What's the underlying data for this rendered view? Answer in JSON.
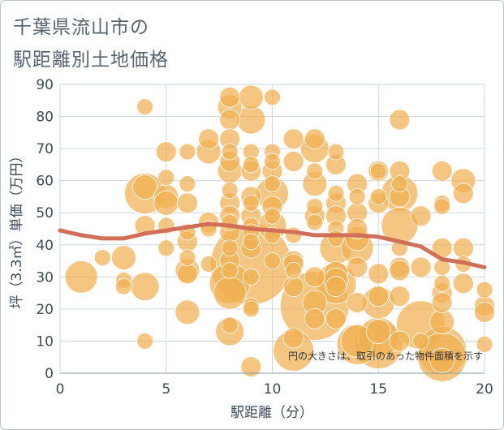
{
  "title_line1": "千葉県流山市の",
  "title_line2": "駅距離別土地価格",
  "chart_data": {
    "type": "scatter",
    "xlabel": "駅距離（分）",
    "ylabel": "坪（3.3㎡）単価（万円）",
    "xlim": [
      0,
      20
    ],
    "ylim": [
      0,
      90
    ],
    "x_ticks": [
      "0",
      "5",
      "10",
      "15",
      "20"
    ],
    "y_ticks": [
      "0",
      "10",
      "20",
      "30",
      "40",
      "50",
      "60",
      "70",
      "80",
      "90"
    ],
    "grid": true,
    "note": "円の大きさは、取引のあった物件面積を示す",
    "bubble_color": "#f0b050",
    "trend_color": "#d0705a",
    "points": [
      {
        "x": 1,
        "y": 30,
        "s": 3
      },
      {
        "x": 2,
        "y": 36,
        "s": 1
      },
      {
        "x": 3,
        "y": 36,
        "s": 2
      },
      {
        "x": 3,
        "y": 29,
        "s": 1
      },
      {
        "x": 3,
        "y": 27,
        "s": 1
      },
      {
        "x": 4,
        "y": 83,
        "s": 1
      },
      {
        "x": 4,
        "y": 58,
        "s": 2
      },
      {
        "x": 4,
        "y": 56,
        "s": 4
      },
      {
        "x": 4,
        "y": 46,
        "s": 1.5
      },
      {
        "x": 4,
        "y": 27,
        "s": 2.5
      },
      {
        "x": 4,
        "y": 10,
        "s": 1
      },
      {
        "x": 5,
        "y": 69,
        "s": 1.5
      },
      {
        "x": 5,
        "y": 61,
        "s": 1
      },
      {
        "x": 5,
        "y": 55,
        "s": 2
      },
      {
        "x": 5,
        "y": 53,
        "s": 2
      },
      {
        "x": 5,
        "y": 46,
        "s": 1
      },
      {
        "x": 5,
        "y": 39,
        "s": 1
      },
      {
        "x": 6,
        "y": 69,
        "s": 1
      },
      {
        "x": 6,
        "y": 59,
        "s": 1
      },
      {
        "x": 6,
        "y": 53,
        "s": 1.5
      },
      {
        "x": 6,
        "y": 44,
        "s": 1
      },
      {
        "x": 6,
        "y": 41,
        "s": 1.5
      },
      {
        "x": 6,
        "y": 36,
        "s": 1
      },
      {
        "x": 6,
        "y": 32,
        "s": 2
      },
      {
        "x": 6,
        "y": 31,
        "s": 1.5
      },
      {
        "x": 6,
        "y": 19,
        "s": 2
      },
      {
        "x": 7,
        "y": 73,
        "s": 1.5
      },
      {
        "x": 7,
        "y": 69,
        "s": 2
      },
      {
        "x": 7,
        "y": 47,
        "s": 1.5
      },
      {
        "x": 7,
        "y": 45,
        "s": 1
      },
      {
        "x": 7,
        "y": 34,
        "s": 1
      },
      {
        "x": 8,
        "y": 86,
        "s": 1.5
      },
      {
        "x": 8,
        "y": 83,
        "s": 2
      },
      {
        "x": 8,
        "y": 79,
        "s": 1.5
      },
      {
        "x": 8,
        "y": 73,
        "s": 1.5
      },
      {
        "x": 8,
        "y": 69,
        "s": 1
      },
      {
        "x": 8,
        "y": 66,
        "s": 1.5
      },
      {
        "x": 8,
        "y": 63,
        "s": 2
      },
      {
        "x": 8,
        "y": 57,
        "s": 1
      },
      {
        "x": 8,
        "y": 53,
        "s": 1.5
      },
      {
        "x": 8,
        "y": 49,
        "s": 1.5
      },
      {
        "x": 8,
        "y": 47,
        "s": 1
      },
      {
        "x": 8,
        "y": 44,
        "s": 1.5
      },
      {
        "x": 8,
        "y": 39,
        "s": 1
      },
      {
        "x": 8,
        "y": 35,
        "s": 1.5
      },
      {
        "x": 8,
        "y": 32,
        "s": 1
      },
      {
        "x": 8,
        "y": 28,
        "s": 4
      },
      {
        "x": 8,
        "y": 25,
        "s": 3
      },
      {
        "x": 8,
        "y": 15,
        "s": 1
      },
      {
        "x": 8,
        "y": 13,
        "s": 2.5
      },
      {
        "x": 9,
        "y": 86,
        "s": 2
      },
      {
        "x": 9,
        "y": 79,
        "s": 2.5
      },
      {
        "x": 9,
        "y": 69,
        "s": 1
      },
      {
        "x": 9,
        "y": 65,
        "s": 1
      },
      {
        "x": 9,
        "y": 63,
        "s": 1.5
      },
      {
        "x": 9,
        "y": 55,
        "s": 1.5
      },
      {
        "x": 9,
        "y": 53,
        "s": 1
      },
      {
        "x": 9,
        "y": 49,
        "s": 1.5
      },
      {
        "x": 9,
        "y": 46,
        "s": 1
      },
      {
        "x": 9,
        "y": 44,
        "s": 1
      },
      {
        "x": 9,
        "y": 41,
        "s": 1
      },
      {
        "x": 9,
        "y": 39,
        "s": 1.5
      },
      {
        "x": 9,
        "y": 34,
        "s": 9
      },
      {
        "x": 9,
        "y": 30,
        "s": 1
      },
      {
        "x": 9,
        "y": 21,
        "s": 1
      },
      {
        "x": 9,
        "y": 20,
        "s": 1
      },
      {
        "x": 9,
        "y": 2,
        "s": 1.5
      },
      {
        "x": 10,
        "y": 86,
        "s": 1
      },
      {
        "x": 10,
        "y": 69,
        "s": 1
      },
      {
        "x": 10,
        "y": 66,
        "s": 1
      },
      {
        "x": 10,
        "y": 63,
        "s": 1.5
      },
      {
        "x": 10,
        "y": 59,
        "s": 1
      },
      {
        "x": 10,
        "y": 56,
        "s": 3
      },
      {
        "x": 10,
        "y": 52,
        "s": 1.5
      },
      {
        "x": 10,
        "y": 49,
        "s": 1
      },
      {
        "x": 10,
        "y": 46,
        "s": 2.5
      },
      {
        "x": 10,
        "y": 43,
        "s": 1
      },
      {
        "x": 10,
        "y": 35,
        "s": 1
      },
      {
        "x": 11,
        "y": 73,
        "s": 1.5
      },
      {
        "x": 11,
        "y": 66,
        "s": 1.5
      },
      {
        "x": 11,
        "y": 43,
        "s": 1
      },
      {
        "x": 11,
        "y": 35,
        "s": 1.5
      },
      {
        "x": 11,
        "y": 34,
        "s": 1.5
      },
      {
        "x": 11,
        "y": 32,
        "s": 1
      },
      {
        "x": 11,
        "y": 27,
        "s": 1.5
      },
      {
        "x": 11,
        "y": 11,
        "s": 1.5
      },
      {
        "x": 11,
        "y": 7,
        "s": 4
      },
      {
        "x": 12,
        "y": 73,
        "s": 1.5
      },
      {
        "x": 12,
        "y": 70,
        "s": 2.5
      },
      {
        "x": 12,
        "y": 63,
        "s": 1
      },
      {
        "x": 12,
        "y": 59,
        "s": 2
      },
      {
        "x": 12,
        "y": 52,
        "s": 1
      },
      {
        "x": 12,
        "y": 49,
        "s": 1.5
      },
      {
        "x": 12,
        "y": 47,
        "s": 1
      },
      {
        "x": 12,
        "y": 30,
        "s": 1.5
      },
      {
        "x": 12,
        "y": 22,
        "s": 2
      },
      {
        "x": 12,
        "y": 21,
        "s": 7.5
      },
      {
        "x": 12,
        "y": 17,
        "s": 1.5
      },
      {
        "x": 13,
        "y": 69,
        "s": 1
      },
      {
        "x": 13,
        "y": 65,
        "s": 1.5
      },
      {
        "x": 13,
        "y": 56,
        "s": 1
      },
      {
        "x": 13,
        "y": 53,
        "s": 1.5
      },
      {
        "x": 13,
        "y": 49,
        "s": 1.5
      },
      {
        "x": 13,
        "y": 45,
        "s": 1
      },
      {
        "x": 13,
        "y": 42,
        "s": 1
      },
      {
        "x": 13,
        "y": 39,
        "s": 3
      },
      {
        "x": 13,
        "y": 31,
        "s": 2
      },
      {
        "x": 13,
        "y": 29,
        "s": 2
      },
      {
        "x": 13,
        "y": 28,
        "s": 4
      },
      {
        "x": 13,
        "y": 27,
        "s": 1.5
      },
      {
        "x": 13,
        "y": 17,
        "s": 1.5
      },
      {
        "x": 14,
        "y": 59,
        "s": 1.5
      },
      {
        "x": 14,
        "y": 55,
        "s": 1
      },
      {
        "x": 14,
        "y": 50,
        "s": 1.5
      },
      {
        "x": 14,
        "y": 45,
        "s": 1.5
      },
      {
        "x": 14,
        "y": 42,
        "s": 2
      },
      {
        "x": 14,
        "y": 39,
        "s": 3
      },
      {
        "x": 14,
        "y": 33,
        "s": 1.5
      },
      {
        "x": 14,
        "y": 22,
        "s": 1.5
      },
      {
        "x": 14,
        "y": 10,
        "s": 3
      },
      {
        "x": 14,
        "y": 9,
        "s": 4
      },
      {
        "x": 15,
        "y": 63,
        "s": 1
      },
      {
        "x": 15,
        "y": 63,
        "s": 1.5
      },
      {
        "x": 15,
        "y": 55,
        "s": 1
      },
      {
        "x": 15,
        "y": 53,
        "s": 1.5
      },
      {
        "x": 15,
        "y": 31,
        "s": 1.5
      },
      {
        "x": 15,
        "y": 24,
        "s": 1.5
      },
      {
        "x": 15,
        "y": 22,
        "s": 3
      },
      {
        "x": 15,
        "y": 13,
        "s": 2
      },
      {
        "x": 15,
        "y": 11,
        "s": 4
      },
      {
        "x": 15,
        "y": 9,
        "s": 5
      },
      {
        "x": 16,
        "y": 79,
        "s": 1.5
      },
      {
        "x": 16,
        "y": 63,
        "s": 1.5
      },
      {
        "x": 16,
        "y": 59,
        "s": 1
      },
      {
        "x": 16,
        "y": 56,
        "s": 3.5
      },
      {
        "x": 16,
        "y": 55,
        "s": 1.5
      },
      {
        "x": 16,
        "y": 46,
        "s": 3.5
      },
      {
        "x": 16,
        "y": 39,
        "s": 1
      },
      {
        "x": 16,
        "y": 33,
        "s": 1.5
      },
      {
        "x": 16,
        "y": 32,
        "s": 1.5
      },
      {
        "x": 16,
        "y": 24,
        "s": 1.5
      },
      {
        "x": 16,
        "y": 10,
        "s": 1.5
      },
      {
        "x": 17,
        "y": 49,
        "s": 1.5
      },
      {
        "x": 17,
        "y": 33,
        "s": 1.5
      },
      {
        "x": 17,
        "y": 15,
        "s": 5
      },
      {
        "x": 17,
        "y": 10,
        "s": 1
      },
      {
        "x": 18,
        "y": 63,
        "s": 1.5
      },
      {
        "x": 18,
        "y": 53,
        "s": 1
      },
      {
        "x": 18,
        "y": 52,
        "s": 1
      },
      {
        "x": 18,
        "y": 39,
        "s": 1.5
      },
      {
        "x": 18,
        "y": 33,
        "s": 1
      },
      {
        "x": 18,
        "y": 28,
        "s": 1
      },
      {
        "x": 18,
        "y": 25,
        "s": 1.5
      },
      {
        "x": 18,
        "y": 22,
        "s": 1.5
      },
      {
        "x": 18,
        "y": 16,
        "s": 2
      },
      {
        "x": 18,
        "y": 7,
        "s": 5
      },
      {
        "x": 18,
        "y": 5,
        "s": 5
      },
      {
        "x": 18,
        "y": 4,
        "s": 2
      },
      {
        "x": 19,
        "y": 60,
        "s": 2
      },
      {
        "x": 19,
        "y": 56,
        "s": 1.5
      },
      {
        "x": 19,
        "y": 39,
        "s": 1.5
      },
      {
        "x": 19,
        "y": 34,
        "s": 1
      },
      {
        "x": 19,
        "y": 28,
        "s": 1.5
      },
      {
        "x": 20,
        "y": 26,
        "s": 1
      },
      {
        "x": 20,
        "y": 21,
        "s": 1.5
      },
      {
        "x": 20,
        "y": 19,
        "s": 1.5
      },
      {
        "x": 20,
        "y": 9,
        "s": 1
      }
    ],
    "trend": {
      "x": [
        0,
        1,
        2,
        3,
        4,
        5,
        6,
        7,
        8,
        9,
        10,
        11,
        12,
        13,
        14,
        15,
        16,
        17,
        18,
        19,
        20
      ],
      "y": [
        44.5,
        43,
        42,
        42,
        43.5,
        44.5,
        45.5,
        46.5,
        46,
        45,
        44.5,
        44,
        43,
        43,
        43,
        42.5,
        41,
        39.5,
        35.5,
        34.5,
        33
      ]
    }
  }
}
